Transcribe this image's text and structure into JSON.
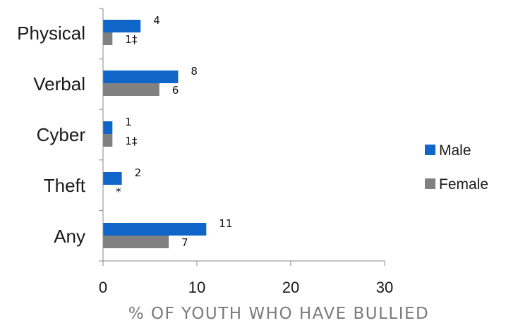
{
  "chart_data": {
    "type": "bar",
    "orientation": "horizontal",
    "categories": [
      "Physical",
      "Verbal",
      "Cyber",
      "Theft",
      "Any"
    ],
    "series": [
      {
        "name": "Male",
        "color": "#0f66c8",
        "values": [
          4,
          8,
          1,
          2,
          11
        ],
        "labels": [
          "4",
          "8",
          "1",
          "2",
          "11"
        ]
      },
      {
        "name": "Female",
        "color": "#808080",
        "values": [
          1,
          6,
          1,
          null,
          7
        ],
        "labels": [
          "1‡",
          "6",
          "1‡",
          "*",
          "7"
        ]
      }
    ],
    "xlim": [
      0,
      30
    ],
    "xticks": [
      "0",
      "10",
      "20",
      "30"
    ],
    "xlabel": "% OF YOUTH WHO HAVE BULLIED",
    "grid": false,
    "legend_position": "right"
  }
}
